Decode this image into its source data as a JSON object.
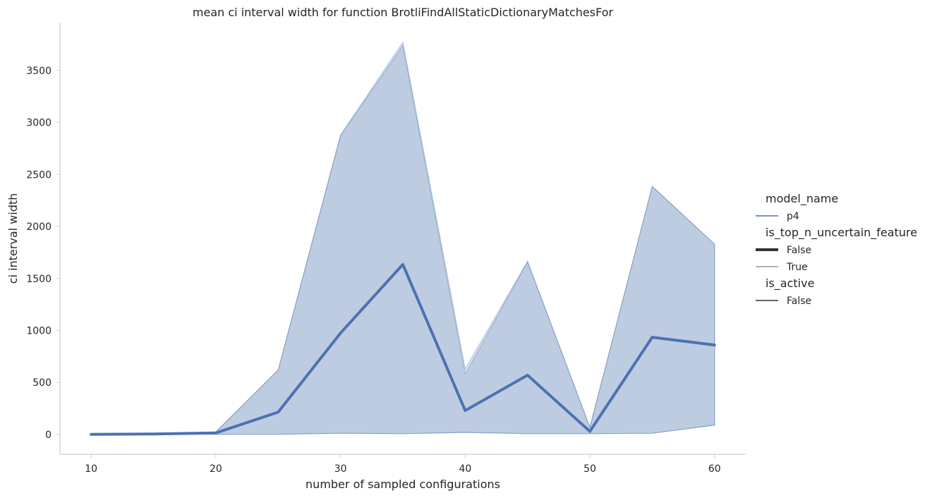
{
  "chart_data": {
    "type": "line",
    "title": "mean ci interval width for function BrotliFindAllStaticDictionaryMatchesFor",
    "xlabel": "number of sampled configurations",
    "ylabel": "ci interval width",
    "xlim": [
      7.5,
      62.5
    ],
    "ylim": [
      -190,
      3960
    ],
    "xticks": [
      10,
      20,
      30,
      40,
      50,
      60
    ],
    "yticks": [
      0,
      500,
      1000,
      1500,
      2000,
      2500,
      3000,
      3500
    ],
    "grid": false,
    "legend_placement": "right",
    "x": [
      10,
      15,
      20,
      25,
      30,
      35,
      40,
      45,
      50,
      55,
      60
    ],
    "series": [
      {
        "name": "p4",
        "color": "#4c72b0",
        "values": [
          2,
          5,
          15,
          215,
          975,
          1635,
          230,
          570,
          30,
          935,
          860
        ],
        "band_upper": [
          5,
          8,
          25,
          620,
          2870,
          3740,
          580,
          1660,
          70,
          2385,
          1830
        ],
        "band_lower": [
          0,
          2,
          2,
          2,
          12,
          8,
          20,
          8,
          8,
          12,
          90
        ]
      },
      {
        "name": "",
        "color": "#4c72b0",
        "band_upper": [
          5,
          8,
          25,
          620,
          2880,
          3770,
          630,
          1665,
          70,
          2385,
          1830
        ],
        "band_lower": [
          0,
          2,
          2,
          2,
          12,
          8,
          20,
          8,
          8,
          12,
          90
        ]
      }
    ],
    "legend": [
      {
        "kind": "title",
        "text": "model_name"
      },
      {
        "kind": "entry",
        "text": "p4",
        "line_color": "#4c72b0",
        "line_width": 1.5
      },
      {
        "kind": "title",
        "text": "is_top_n_uncertain_feature"
      },
      {
        "kind": "entry",
        "text": "False",
        "line_color": "#333333",
        "line_width": 4
      },
      {
        "kind": "entry",
        "text": "True",
        "line_color": "#333333",
        "line_width": 0.8
      },
      {
        "kind": "title",
        "text": "is_active"
      },
      {
        "kind": "entry",
        "text": "False",
        "line_color": "#333333",
        "line_width": 1.5
      }
    ]
  }
}
